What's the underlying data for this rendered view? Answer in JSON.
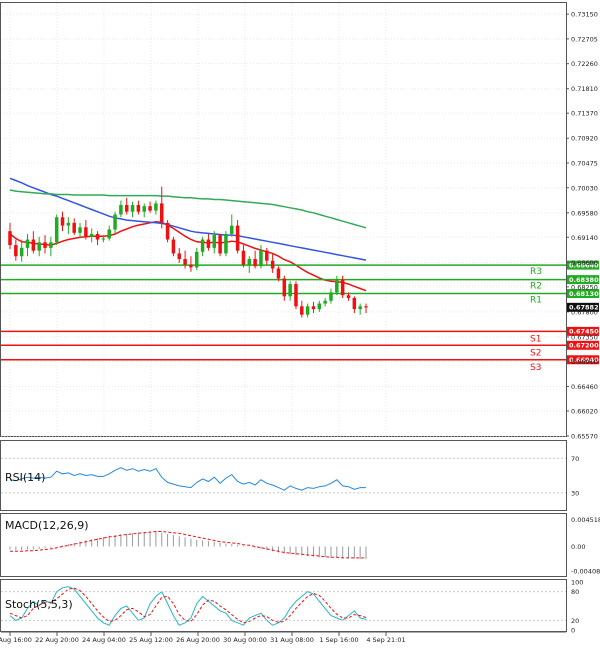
{
  "chart_data": {
    "type": "candlestick",
    "title": "",
    "main": {
      "ylim": [
        0.6557,
        0.7335
      ],
      "y_ticks": [
        "0.73150",
        "0.72705",
        "0.72260",
        "0.71810",
        "0.71370",
        "0.70920",
        "0.70475",
        "0.70030",
        "0.69580",
        "0.69140",
        "0.68690",
        "0.68250",
        "0.67800",
        "0.67350",
        "0.66910",
        "0.66460",
        "0.66020",
        "0.65570"
      ],
      "current_price": "0.67882",
      "levels": [
        {
          "name": "R3",
          "value": 0.6864,
          "label": "0.68640",
          "color": "#22aa22"
        },
        {
          "name": "R2",
          "value": 0.6838,
          "label": "0.68380",
          "color": "#22aa22"
        },
        {
          "name": "R1",
          "value": 0.6813,
          "label": "0.68130",
          "color": "#22aa22"
        },
        {
          "name": "S1",
          "value": 0.6745,
          "label": "0.67450",
          "color": "#ee1111"
        },
        {
          "name": "S2",
          "value": 0.672,
          "label": "0.67200",
          "color": "#ee1111"
        },
        {
          "name": "S3",
          "value": 0.6694,
          "label": "0.66940",
          "color": "#ee1111"
        }
      ],
      "candles": [
        [
          0.6925,
          0.694,
          0.6893,
          0.69
        ],
        [
          0.69,
          0.691,
          0.6872,
          0.688
        ],
        [
          0.688,
          0.691,
          0.687,
          0.6895
        ],
        [
          0.6895,
          0.692,
          0.688,
          0.691
        ],
        [
          0.691,
          0.6925,
          0.6885,
          0.689
        ],
        [
          0.689,
          0.6915,
          0.688,
          0.6905
        ],
        [
          0.6905,
          0.6918,
          0.6885,
          0.6895
        ],
        [
          0.6895,
          0.6915,
          0.688,
          0.6905
        ],
        [
          0.6905,
          0.6955,
          0.69,
          0.695
        ],
        [
          0.695,
          0.696,
          0.6925,
          0.6935
        ],
        [
          0.6935,
          0.695,
          0.692,
          0.694
        ],
        [
          0.694,
          0.6948,
          0.6918,
          0.6922
        ],
        [
          0.6922,
          0.694,
          0.6912,
          0.6932
        ],
        [
          0.6932,
          0.6945,
          0.691,
          0.6915
        ],
        [
          0.6915,
          0.693,
          0.6905,
          0.692
        ],
        [
          0.692,
          0.6925,
          0.69,
          0.691
        ],
        [
          0.691,
          0.6918,
          0.6905,
          0.6912
        ],
        [
          0.6912,
          0.6935,
          0.6908,
          0.6928
        ],
        [
          0.6928,
          0.696,
          0.692,
          0.6955
        ],
        [
          0.6955,
          0.698,
          0.695,
          0.6972
        ],
        [
          0.6972,
          0.6985,
          0.6955,
          0.696
        ],
        [
          0.696,
          0.6978,
          0.695,
          0.6972
        ],
        [
          0.6972,
          0.698,
          0.6955,
          0.696
        ],
        [
          0.696,
          0.6975,
          0.695,
          0.697
        ],
        [
          0.697,
          0.6978,
          0.6958,
          0.6962
        ],
        [
          0.6962,
          0.698,
          0.6955,
          0.6975
        ],
        [
          0.6975,
          0.7005,
          0.693,
          0.694
        ],
        [
          0.694,
          0.6945,
          0.6905,
          0.691
        ],
        [
          0.691,
          0.6915,
          0.688,
          0.6885
        ],
        [
          0.6885,
          0.6895,
          0.6868,
          0.6875
        ],
        [
          0.6875,
          0.689,
          0.6858,
          0.6865
        ],
        [
          0.6865,
          0.688,
          0.6852,
          0.686
        ],
        [
          0.686,
          0.6895,
          0.6855,
          0.6888
        ],
        [
          0.6888,
          0.6915,
          0.688,
          0.691
        ],
        [
          0.691,
          0.692,
          0.689,
          0.6895
        ],
        [
          0.6895,
          0.6925,
          0.6885,
          0.6918
        ],
        [
          0.6918,
          0.692,
          0.688,
          0.6885
        ],
        [
          0.6885,
          0.6925,
          0.688,
          0.692
        ],
        [
          0.692,
          0.6955,
          0.6915,
          0.6935
        ],
        [
          0.6935,
          0.6945,
          0.6885,
          0.689
        ],
        [
          0.689,
          0.69,
          0.686,
          0.6865
        ],
        [
          0.6865,
          0.688,
          0.685,
          0.6875
        ],
        [
          0.6875,
          0.689,
          0.6858,
          0.6862
        ],
        [
          0.6862,
          0.69,
          0.6858,
          0.689
        ],
        [
          0.689,
          0.6895,
          0.6865,
          0.6872
        ],
        [
          0.6872,
          0.6885,
          0.685,
          0.6858
        ],
        [
          0.6858,
          0.6862,
          0.6835,
          0.684
        ],
        [
          0.684,
          0.6845,
          0.68,
          0.6808
        ],
        [
          0.6808,
          0.6835,
          0.68,
          0.683
        ],
        [
          0.683,
          0.6835,
          0.6785,
          0.679
        ],
        [
          0.679,
          0.68,
          0.677,
          0.6775
        ],
        [
          0.6775,
          0.6795,
          0.677,
          0.679
        ],
        [
          0.679,
          0.6798,
          0.6778,
          0.6785
        ],
        [
          0.6785,
          0.68,
          0.678,
          0.6795
        ],
        [
          0.6795,
          0.6805,
          0.679,
          0.68
        ],
        [
          0.68,
          0.6822,
          0.6795,
          0.6815
        ],
        [
          0.6815,
          0.6845,
          0.681,
          0.6838
        ],
        [
          0.6838,
          0.6845,
          0.6805,
          0.681
        ],
        [
          0.681,
          0.6815,
          0.68,
          0.6805
        ],
        [
          0.6805,
          0.6808,
          0.6778,
          0.6785
        ],
        [
          0.6785,
          0.6795,
          0.6775,
          0.679
        ],
        [
          0.679,
          0.6795,
          0.6778,
          0.6788
        ]
      ],
      "moving_averages": [
        {
          "name": "fast",
          "color": "#ee1111",
          "values": [
            0.692,
            0.6912,
            0.6906,
            0.6905,
            0.6903,
            0.6902,
            0.6901,
            0.69,
            0.6903,
            0.6907,
            0.691,
            0.6912,
            0.6914,
            0.6915,
            0.6916,
            0.6916,
            0.6916,
            0.6917,
            0.692,
            0.6925,
            0.6929,
            0.6933,
            0.6936,
            0.6938,
            0.694,
            0.6942,
            0.6941,
            0.6936,
            0.693,
            0.6923,
            0.6916,
            0.691,
            0.6906,
            0.6905,
            0.6904,
            0.6905,
            0.6904,
            0.6905,
            0.6907,
            0.6906,
            0.6902,
            0.6898,
            0.6894,
            0.6891,
            0.6888,
            0.6885,
            0.688,
            0.6874,
            0.687,
            0.6864,
            0.6857,
            0.6851,
            0.6846,
            0.6841,
            0.6837,
            0.6835,
            0.6834,
            0.6833,
            0.683,
            0.6826,
            0.6822,
            0.6818
          ]
        },
        {
          "name": "medium",
          "color": "#3355dd",
          "values": [
            0.702,
            0.7016,
            0.7012,
            0.7007,
            0.7003,
            0.6999,
            0.6995,
            0.6991,
            0.6988,
            0.6984,
            0.698,
            0.6976,
            0.6972,
            0.6968,
            0.6964,
            0.696,
            0.6956,
            0.6952,
            0.6949,
            0.6947,
            0.6945,
            0.6944,
            0.6943,
            0.6942,
            0.6941,
            0.694,
            0.6939,
            0.6937,
            0.6934,
            0.6931,
            0.6928,
            0.6925,
            0.6923,
            0.6922,
            0.6921,
            0.692,
            0.6919,
            0.6918,
            0.6918,
            0.6917,
            0.6915,
            0.6913,
            0.6911,
            0.6909,
            0.6907,
            0.6905,
            0.6903,
            0.6901,
            0.6899,
            0.6897,
            0.6895,
            0.6893,
            0.6891,
            0.6889,
            0.6887,
            0.6885,
            0.6883,
            0.6881,
            0.6879,
            0.6877,
            0.6875,
            0.6873
          ]
        },
        {
          "name": "slow",
          "color": "#33aa55",
          "values": [
            0.6999,
            0.6997,
            0.6996,
            0.6995,
            0.6994,
            0.6993,
            0.6992,
            0.6992,
            0.6991,
            0.6991,
            0.6991,
            0.699,
            0.699,
            0.699,
            0.699,
            0.699,
            0.699,
            0.6989,
            0.6989,
            0.6989,
            0.6989,
            0.6989,
            0.6989,
            0.6989,
            0.6989,
            0.6989,
            0.6988,
            0.6988,
            0.6987,
            0.6986,
            0.6985,
            0.6985,
            0.6984,
            0.6983,
            0.6983,
            0.6982,
            0.6982,
            0.6981,
            0.698,
            0.6979,
            0.6978,
            0.6977,
            0.6976,
            0.6975,
            0.6974,
            0.6973,
            0.6971,
            0.6969,
            0.6967,
            0.6965,
            0.6963,
            0.696,
            0.6958,
            0.6955,
            0.6952,
            0.6949,
            0.6946,
            0.6943,
            0.694,
            0.6937,
            0.6934,
            0.6931
          ]
        }
      ]
    },
    "rsi": {
      "title": "RSI(14)",
      "ylim": [
        10,
        90
      ],
      "ticks": [
        "70",
        "30"
      ],
      "values": [
        45,
        44,
        46,
        48,
        47,
        48,
        47,
        48,
        55,
        52,
        53,
        50,
        52,
        50,
        51,
        49,
        49,
        52,
        56,
        59,
        56,
        58,
        55,
        57,
        55,
        58,
        48,
        42,
        40,
        38,
        37,
        36,
        42,
        46,
        43,
        48,
        41,
        47,
        51,
        43,
        40,
        42,
        39,
        45,
        41,
        39,
        36,
        33,
        38,
        35,
        33,
        36,
        35,
        37,
        38,
        41,
        45,
        38,
        37,
        34,
        36,
        36
      ]
    },
    "macd": {
      "title": "MACD(12,26,9)",
      "ylim": [
        -0.0049,
        0.0054
      ],
      "ticks": [
        "0.004518",
        "0.00",
        "-0.00408"
      ],
      "histogram": [
        -0.0005,
        -0.0006,
        -0.0006,
        -0.0005,
        -0.0005,
        -0.0004,
        -0.0003,
        -0.0002,
        0.0,
        0.0002,
        0.0004,
        0.0006,
        0.0008,
        0.001,
        0.0012,
        0.0014,
        0.0016,
        0.0018,
        0.0019,
        0.002,
        0.0021,
        0.0022,
        0.0023,
        0.0024,
        0.0024,
        0.0025,
        0.0023,
        0.0021,
        0.0019,
        0.0017,
        0.0015,
        0.0013,
        0.0011,
        0.001,
        0.0009,
        0.0008,
        0.0006,
        0.0005,
        0.0004,
        0.0003,
        0.0001,
        0.0,
        -0.0002,
        -0.0004,
        -0.0006,
        -0.0008,
        -0.001,
        -0.0012,
        -0.0013,
        -0.0014,
        -0.0015,
        -0.0016,
        -0.0017,
        -0.0018,
        -0.0018,
        -0.0019,
        -0.0019,
        -0.002,
        -0.002,
        -0.002,
        -0.0021,
        -0.0021
      ],
      "signal": [
        -0.0008,
        -0.0008,
        -0.0008,
        -0.0007,
        -0.0007,
        -0.0006,
        -0.0005,
        -0.0004,
        -0.0002,
        0.0,
        0.0002,
        0.0004,
        0.0006,
        0.0008,
        0.001,
        0.0012,
        0.0014,
        0.0016,
        0.0017,
        0.0019,
        0.002,
        0.0021,
        0.0022,
        0.0023,
        0.0024,
        0.0025,
        0.0025,
        0.0024,
        0.0023,
        0.0022,
        0.002,
        0.0018,
        0.0016,
        0.0014,
        0.0012,
        0.001,
        0.0008,
        0.0007,
        0.0006,
        0.0005,
        0.0003,
        0.0002,
        0.0,
        -0.0002,
        -0.0004,
        -0.0006,
        -0.0008,
        -0.001,
        -0.0011,
        -0.0012,
        -0.0013,
        -0.0014,
        -0.0015,
        -0.0016,
        -0.0017,
        -0.0018,
        -0.0018,
        -0.0019,
        -0.0019,
        -0.0019,
        -0.0019,
        -0.0019
      ]
    },
    "stoch": {
      "title": "Stoch(5,5,3)",
      "ylim": [
        0,
        100
      ],
      "ticks": [
        "100",
        "80",
        "20",
        "0"
      ],
      "k": [
        30,
        20,
        25,
        45,
        60,
        50,
        62,
        55,
        80,
        88,
        90,
        85,
        70,
        55,
        40,
        25,
        15,
        10,
        30,
        45,
        50,
        35,
        20,
        25,
        55,
        70,
        80,
        55,
        30,
        10,
        15,
        25,
        55,
        70,
        60,
        50,
        40,
        35,
        20,
        15,
        10,
        25,
        30,
        35,
        20,
        10,
        15,
        25,
        45,
        60,
        70,
        80,
        75,
        60,
        45,
        30,
        25,
        20,
        30,
        40,
        25,
        22
      ],
      "d": [
        35,
        30,
        25,
        30,
        45,
        52,
        58,
        58,
        65,
        75,
        85,
        87,
        82,
        70,
        55,
        40,
        27,
        18,
        20,
        30,
        42,
        45,
        38,
        28,
        32,
        50,
        68,
        70,
        55,
        32,
        20,
        18,
        32,
        52,
        62,
        60,
        50,
        42,
        32,
        22,
        15,
        18,
        25,
        30,
        28,
        20,
        16,
        18,
        30,
        45,
        58,
        70,
        76,
        72,
        60,
        45,
        33,
        25,
        25,
        32,
        30,
        26
      ]
    },
    "x_ticks": [
      "21 Aug 16:00",
      "22 Aug 20:00",
      "24 Aug 04:00",
      "25 Aug 12:00",
      "26 Aug 20:00",
      "30 Aug 00:00",
      "31 Aug 08:00",
      "1 Sep 16:00",
      "4 Sep 21:01"
    ]
  },
  "colors": {
    "bull": "#22aa22",
    "bear": "#ee1111",
    "grid": "#e8e8e8",
    "axis": "#555555",
    "price_tag": "#111111"
  }
}
